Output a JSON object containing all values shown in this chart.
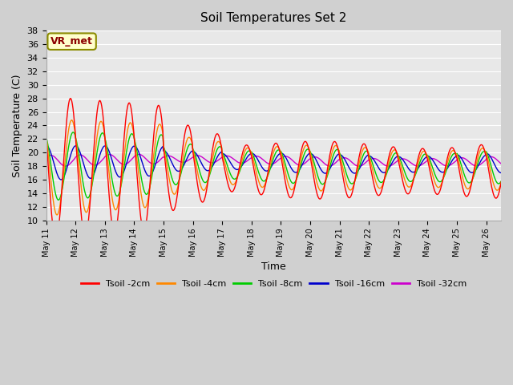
{
  "title": "Soil Temperatures Set 2",
  "xlabel": "Time",
  "ylabel": "Soil Temperature (C)",
  "ylim": [
    10,
    38
  ],
  "yticks": [
    10,
    12,
    14,
    16,
    18,
    20,
    22,
    24,
    26,
    28,
    30,
    32,
    34,
    36,
    38
  ],
  "colors": {
    "Tsoil -2cm": "#ff0000",
    "Tsoil -4cm": "#ff8800",
    "Tsoil -8cm": "#00cc00",
    "Tsoil -16cm": "#0000cc",
    "Tsoil -32cm": "#cc00cc"
  },
  "legend_label": "VR_met",
  "background_color": "#e8e8e8",
  "grid_color": "#ffffff",
  "x_tick_labels": [
    "May 11",
    "May 12",
    "May 13",
    "May 14",
    "May 15",
    "May 16",
    "May 17",
    "May 18",
    "May 19",
    "May 20",
    "May 21",
    "May 22",
    "May 23",
    "May 24",
    "May 25",
    "May 26"
  ]
}
